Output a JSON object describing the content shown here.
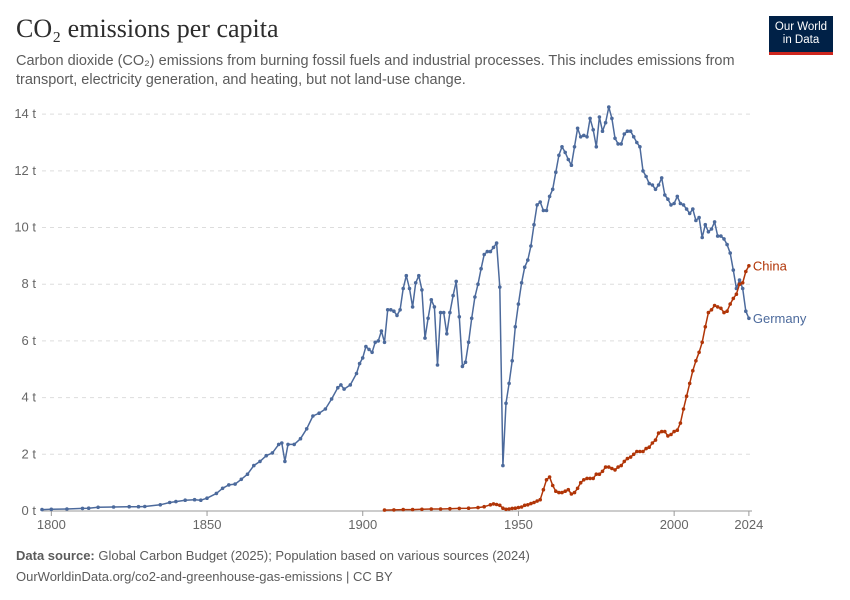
{
  "header": {
    "title": "CO₂ emissions per capita",
    "subtitle": "Carbon dioxide (CO₂) emissions from burning fossil fuels and industrial processes. This includes emissions from transport, electricity generation, and heating, but not land-use change."
  },
  "logo": {
    "line1": "Our World",
    "line2": "in Data"
  },
  "footer": {
    "source_label": "Data source:",
    "source_text": " Global Carbon Budget (2025); Population based on various sources (2024)",
    "url_text": "OurWorldinData.org/co2-and-greenhouse-gas-emissions | CC BY"
  },
  "chart_data": {
    "type": "line",
    "title": "CO₂ emissions per capita",
    "xlim": [
      1797,
      2025
    ],
    "ylim": [
      0,
      14.5
    ],
    "x_ticks": [
      {
        "value": 1800,
        "label": "1800"
      },
      {
        "value": 1850,
        "label": "1850"
      },
      {
        "value": 1900,
        "label": "1900"
      },
      {
        "value": 1950,
        "label": "1950"
      },
      {
        "value": 2000,
        "label": "2000"
      },
      {
        "value": 2024,
        "label": "2024"
      }
    ],
    "y_ticks": [
      {
        "value": 0,
        "label": "0 t"
      },
      {
        "value": 2,
        "label": "2 t"
      },
      {
        "value": 4,
        "label": "4 t"
      },
      {
        "value": 6,
        "label": "6 t"
      },
      {
        "value": 8,
        "label": "8 t"
      },
      {
        "value": 10,
        "label": "10 t"
      },
      {
        "value": 12,
        "label": "12 t"
      },
      {
        "value": 14,
        "label": "14 t"
      }
    ],
    "grid": "horizontal dashed",
    "legend": "inline labels at line ends (right)",
    "series": [
      {
        "name": "Germany",
        "color": "#4c6a9c",
        "points": [
          [
            1797,
            0.05
          ],
          [
            1800,
            0.06
          ],
          [
            1805,
            0.07
          ],
          [
            1810,
            0.09
          ],
          [
            1812,
            0.1
          ],
          [
            1815,
            0.13
          ],
          [
            1820,
            0.14
          ],
          [
            1825,
            0.15
          ],
          [
            1828,
            0.15
          ],
          [
            1830,
            0.16
          ],
          [
            1835,
            0.22
          ],
          [
            1838,
            0.3
          ],
          [
            1840,
            0.33
          ],
          [
            1843,
            0.38
          ],
          [
            1846,
            0.4
          ],
          [
            1848,
            0.38
          ],
          [
            1850,
            0.45
          ],
          [
            1853,
            0.62
          ],
          [
            1855,
            0.8
          ],
          [
            1857,
            0.92
          ],
          [
            1859,
            0.95
          ],
          [
            1861,
            1.12
          ],
          [
            1863,
            1.3
          ],
          [
            1865,
            1.6
          ],
          [
            1867,
            1.75
          ],
          [
            1869,
            1.95
          ],
          [
            1871,
            2.05
          ],
          [
            1873,
            2.35
          ],
          [
            1874,
            2.4
          ],
          [
            1875,
            1.75
          ],
          [
            1876,
            2.35
          ],
          [
            1878,
            2.35
          ],
          [
            1880,
            2.55
          ],
          [
            1882,
            2.9
          ],
          [
            1884,
            3.35
          ],
          [
            1886,
            3.45
          ],
          [
            1888,
            3.6
          ],
          [
            1890,
            3.95
          ],
          [
            1892,
            4.35
          ],
          [
            1893,
            4.45
          ],
          [
            1894,
            4.3
          ],
          [
            1896,
            4.45
          ],
          [
            1898,
            4.85
          ],
          [
            1899,
            5.2
          ],
          [
            1900,
            5.4
          ],
          [
            1901,
            5.8
          ],
          [
            1902,
            5.7
          ],
          [
            1903,
            5.6
          ],
          [
            1904,
            5.95
          ],
          [
            1905,
            6.0
          ],
          [
            1906,
            6.35
          ],
          [
            1907,
            5.95
          ],
          [
            1908,
            7.1
          ],
          [
            1909,
            7.1
          ],
          [
            1910,
            7.05
          ],
          [
            1911,
            6.9
          ],
          [
            1912,
            7.1
          ],
          [
            1913,
            7.85
          ],
          [
            1914,
            8.3
          ],
          [
            1915,
            7.85
          ],
          [
            1916,
            7.2
          ],
          [
            1917,
            8.05
          ],
          [
            1918,
            8.3
          ],
          [
            1919,
            7.8
          ],
          [
            1920,
            6.1
          ],
          [
            1921,
            6.8
          ],
          [
            1922,
            7.45
          ],
          [
            1923,
            7.2
          ],
          [
            1924,
            5.15
          ],
          [
            1925,
            7.0
          ],
          [
            1926,
            7.0
          ],
          [
            1927,
            6.25
          ],
          [
            1928,
            7.0
          ],
          [
            1929,
            7.6
          ],
          [
            1930,
            8.1
          ],
          [
            1931,
            6.85
          ],
          [
            1932,
            5.1
          ],
          [
            1933,
            5.25
          ],
          [
            1934,
            5.95
          ],
          [
            1935,
            6.8
          ],
          [
            1936,
            7.55
          ],
          [
            1937,
            8.0
          ],
          [
            1938,
            8.55
          ],
          [
            1939,
            9.05
          ],
          [
            1940,
            9.15
          ],
          [
            1941,
            9.15
          ],
          [
            1942,
            9.3
          ],
          [
            1943,
            9.45
          ],
          [
            1944,
            7.9
          ],
          [
            1945,
            1.6
          ],
          [
            1946,
            3.8
          ],
          [
            1947,
            4.5
          ],
          [
            1948,
            5.3
          ],
          [
            1949,
            6.5
          ],
          [
            1950,
            7.3
          ],
          [
            1951,
            8.05
          ],
          [
            1952,
            8.6
          ],
          [
            1953,
            8.85
          ],
          [
            1954,
            9.35
          ],
          [
            1955,
            10.1
          ],
          [
            1956,
            10.8
          ],
          [
            1957,
            10.9
          ],
          [
            1958,
            10.6
          ],
          [
            1959,
            10.6
          ],
          [
            1960,
            11.1
          ],
          [
            1961,
            11.35
          ],
          [
            1962,
            11.95
          ],
          [
            1963,
            12.55
          ],
          [
            1964,
            12.85
          ],
          [
            1965,
            12.65
          ],
          [
            1966,
            12.4
          ],
          [
            1967,
            12.2
          ],
          [
            1968,
            12.85
          ],
          [
            1969,
            13.5
          ],
          [
            1970,
            13.2
          ],
          [
            1971,
            13.25
          ],
          [
            1972,
            13.2
          ],
          [
            1973,
            13.85
          ],
          [
            1974,
            13.45
          ],
          [
            1975,
            12.85
          ],
          [
            1976,
            13.9
          ],
          [
            1977,
            13.4
          ],
          [
            1978,
            13.7
          ],
          [
            1979,
            14.25
          ],
          [
            1980,
            13.85
          ],
          [
            1981,
            13.15
          ],
          [
            1982,
            12.95
          ],
          [
            1983,
            12.95
          ],
          [
            1984,
            13.3
          ],
          [
            1985,
            13.4
          ],
          [
            1986,
            13.4
          ],
          [
            1987,
            13.2
          ],
          [
            1988,
            13.0
          ],
          [
            1989,
            12.85
          ],
          [
            1990,
            12.0
          ],
          [
            1991,
            11.8
          ],
          [
            1992,
            11.55
          ],
          [
            1993,
            11.5
          ],
          [
            1994,
            11.35
          ],
          [
            1995,
            11.5
          ],
          [
            1996,
            11.75
          ],
          [
            1997,
            11.15
          ],
          [
            1998,
            11.0
          ],
          [
            1999,
            10.8
          ],
          [
            2000,
            10.85
          ],
          [
            2001,
            11.1
          ],
          [
            2002,
            10.85
          ],
          [
            2003,
            10.8
          ],
          [
            2004,
            10.65
          ],
          [
            2005,
            10.5
          ],
          [
            2006,
            10.65
          ],
          [
            2007,
            10.25
          ],
          [
            2008,
            10.35
          ],
          [
            2009,
            9.65
          ],
          [
            2010,
            10.1
          ],
          [
            2011,
            9.85
          ],
          [
            2012,
            9.95
          ],
          [
            2013,
            10.2
          ],
          [
            2014,
            9.7
          ],
          [
            2015,
            9.7
          ],
          [
            2016,
            9.6
          ],
          [
            2017,
            9.4
          ],
          [
            2018,
            9.1
          ],
          [
            2019,
            8.5
          ],
          [
            2020,
            7.85
          ],
          [
            2021,
            8.15
          ],
          [
            2022,
            7.85
          ],
          [
            2023,
            7.05
          ],
          [
            2024,
            6.8
          ]
        ]
      },
      {
        "name": "China",
        "color": "#b13507",
        "points": [
          [
            1907,
            0.03
          ],
          [
            1910,
            0.04
          ],
          [
            1913,
            0.05
          ],
          [
            1916,
            0.05
          ],
          [
            1919,
            0.06
          ],
          [
            1922,
            0.07
          ],
          [
            1925,
            0.07
          ],
          [
            1928,
            0.08
          ],
          [
            1931,
            0.09
          ],
          [
            1934,
            0.1
          ],
          [
            1937,
            0.12
          ],
          [
            1939,
            0.15
          ],
          [
            1941,
            0.22
          ],
          [
            1942,
            0.25
          ],
          [
            1943,
            0.23
          ],
          [
            1944,
            0.2
          ],
          [
            1945,
            0.1
          ],
          [
            1946,
            0.06
          ],
          [
            1947,
            0.07
          ],
          [
            1948,
            0.09
          ],
          [
            1949,
            0.1
          ],
          [
            1950,
            0.12
          ],
          [
            1951,
            0.14
          ],
          [
            1952,
            0.2
          ],
          [
            1953,
            0.22
          ],
          [
            1954,
            0.26
          ],
          [
            1955,
            0.3
          ],
          [
            1956,
            0.35
          ],
          [
            1957,
            0.4
          ],
          [
            1958,
            0.75
          ],
          [
            1959,
            1.1
          ],
          [
            1960,
            1.2
          ],
          [
            1961,
            0.9
          ],
          [
            1962,
            0.7
          ],
          [
            1963,
            0.65
          ],
          [
            1964,
            0.65
          ],
          [
            1965,
            0.7
          ],
          [
            1966,
            0.75
          ],
          [
            1967,
            0.6
          ],
          [
            1968,
            0.65
          ],
          [
            1969,
            0.8
          ],
          [
            1970,
            1.0
          ],
          [
            1971,
            1.1
          ],
          [
            1972,
            1.15
          ],
          [
            1973,
            1.15
          ],
          [
            1974,
            1.15
          ],
          [
            1975,
            1.3
          ],
          [
            1976,
            1.3
          ],
          [
            1977,
            1.4
          ],
          [
            1978,
            1.55
          ],
          [
            1979,
            1.55
          ],
          [
            1980,
            1.5
          ],
          [
            1981,
            1.45
          ],
          [
            1982,
            1.55
          ],
          [
            1983,
            1.6
          ],
          [
            1984,
            1.75
          ],
          [
            1985,
            1.85
          ],
          [
            1986,
            1.9
          ],
          [
            1987,
            2.0
          ],
          [
            1988,
            2.1
          ],
          [
            1989,
            2.1
          ],
          [
            1990,
            2.1
          ],
          [
            1991,
            2.2
          ],
          [
            1992,
            2.25
          ],
          [
            1993,
            2.4
          ],
          [
            1994,
            2.5
          ],
          [
            1995,
            2.75
          ],
          [
            1996,
            2.8
          ],
          [
            1997,
            2.8
          ],
          [
            1998,
            2.65
          ],
          [
            1999,
            2.7
          ],
          [
            2000,
            2.8
          ],
          [
            2001,
            2.85
          ],
          [
            2002,
            3.1
          ],
          [
            2003,
            3.6
          ],
          [
            2004,
            4.05
          ],
          [
            2005,
            4.5
          ],
          [
            2006,
            4.95
          ],
          [
            2007,
            5.3
          ],
          [
            2008,
            5.6
          ],
          [
            2009,
            5.95
          ],
          [
            2010,
            6.5
          ],
          [
            2011,
            7.0
          ],
          [
            2012,
            7.1
          ],
          [
            2013,
            7.25
          ],
          [
            2014,
            7.2
          ],
          [
            2015,
            7.15
          ],
          [
            2016,
            7.0
          ],
          [
            2017,
            7.05
          ],
          [
            2018,
            7.3
          ],
          [
            2019,
            7.5
          ],
          [
            2020,
            7.65
          ],
          [
            2021,
            8.0
          ],
          [
            2022,
            8.05
          ],
          [
            2023,
            8.45
          ],
          [
            2024,
            8.65
          ]
        ]
      }
    ]
  }
}
